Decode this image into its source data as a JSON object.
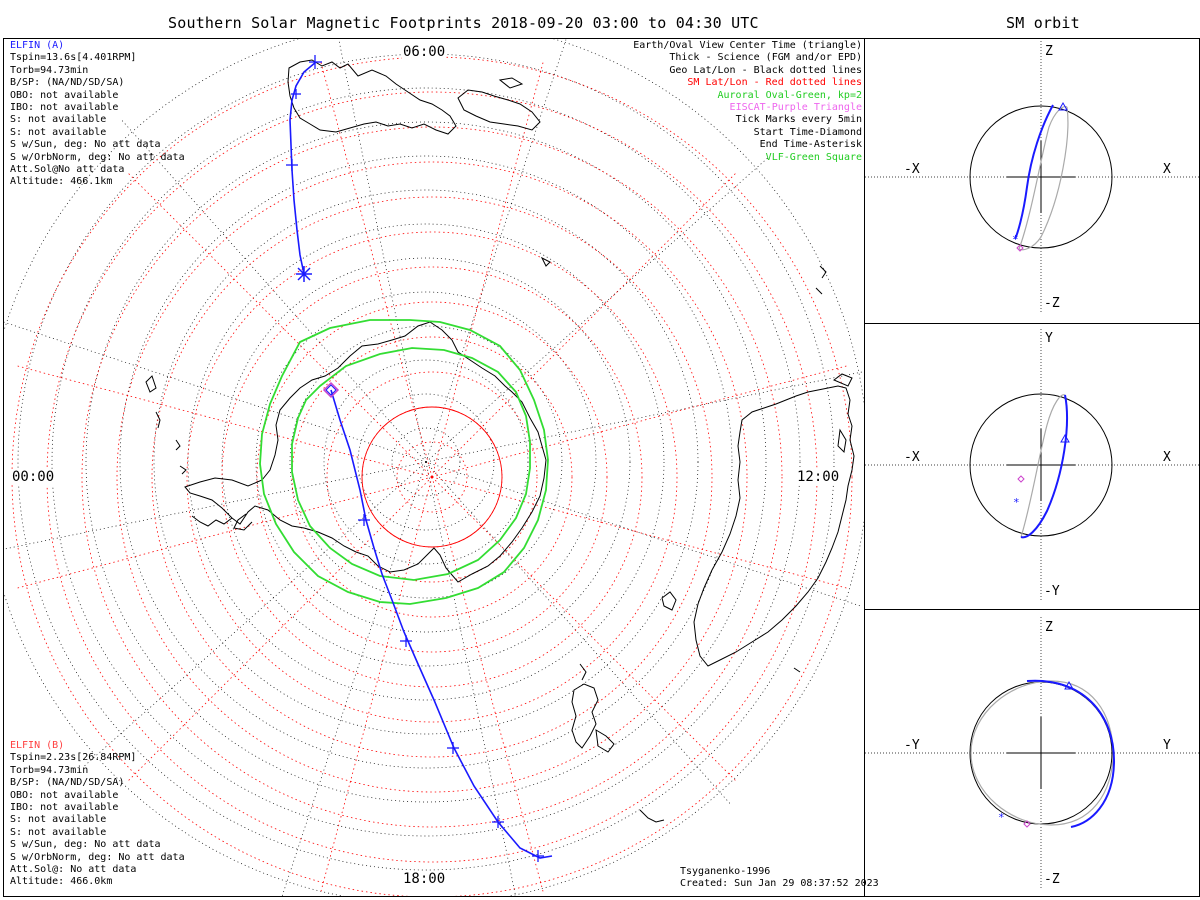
{
  "title": "Southern Solar Magnetic Footprints 2018-09-20 03:00 to 04:30 UTC",
  "orbit_title": "SM orbit",
  "map": {
    "time_labels": {
      "top": "06:00",
      "left": "00:00",
      "right": "12:00",
      "bottom": "18:00"
    }
  },
  "elfin_a": {
    "header": "ELFIN (A)",
    "color": "#1a1aff",
    "lines": [
      "Tspin=13.6s[4.401RPM]",
      "Torb=94.73min",
      "B/SP: (NA/ND/SD/SA)",
      "OBO: not available",
      "IBO: not available",
      "S: not available",
      "S: not available",
      "S w/Sun, deg: No att data",
      "S w/OrbNorm, deg: No att data",
      "Att.Sol@No att data",
      "Altitude: 466.1km"
    ]
  },
  "elfin_b": {
    "header": "ELFIN (B)",
    "color": "#ff4040",
    "lines": [
      "Tspin=2.23s[26.84RPM]",
      "Torb=94.73min",
      "B/SP: (NA/ND/SD/SA)",
      "OBO: not available",
      "IBO: not available",
      "S: not available",
      "S: not available",
      "S w/Sun, deg: No att data",
      "S w/OrbNorm, deg: No att data",
      "Att.Sol@: No att data",
      "Altitude: 466.0km"
    ]
  },
  "legend": [
    {
      "text": "Earth/Oval View Center Time (triangle)",
      "color": "#000000"
    },
    {
      "text": "Thick - Science (FGM and/or EPD)",
      "color": "#000000"
    },
    {
      "text": "Geo Lat/Lon - Black dotted lines",
      "color": "#000000"
    },
    {
      "text": "SM Lat/Lon - Red dotted lines",
      "color": "#ff0000"
    },
    {
      "text": "Auroral Oval-Green, kp=2",
      "color": "#22cc22"
    },
    {
      "text": "EISCAT-Purple Triangle",
      "color": "#ee66ee"
    },
    {
      "text": "Tick Marks every 5min",
      "color": "#000000"
    },
    {
      "text": "Start Time-Diamond",
      "color": "#000000"
    },
    {
      "text": "End Time-Asterisk",
      "color": "#000000"
    },
    {
      "text": "VLF-Green Square",
      "color": "#22cc22"
    }
  ],
  "footer": {
    "model": "Tsyganenko-1996",
    "created": "Created: Sun Jan 29 08:37:52 2023"
  },
  "panels": [
    {
      "top": "Z",
      "bottom": "-Z",
      "left": "-X",
      "right": "X"
    },
    {
      "top": "Y",
      "bottom": "-Y",
      "left": "-X",
      "right": "X"
    },
    {
      "top": "Z",
      "bottom": "-Z",
      "left": "-Y",
      "right": "Y"
    }
  ],
  "colors": {
    "track": "#1a1aff",
    "oval": "#33dd33",
    "sm_grid": "#ff0000",
    "geo_grid": "#000000",
    "start_marker": "#cc44cc",
    "end_marker": "#1a1aff",
    "orbit_gray": "#aaaaaa"
  }
}
